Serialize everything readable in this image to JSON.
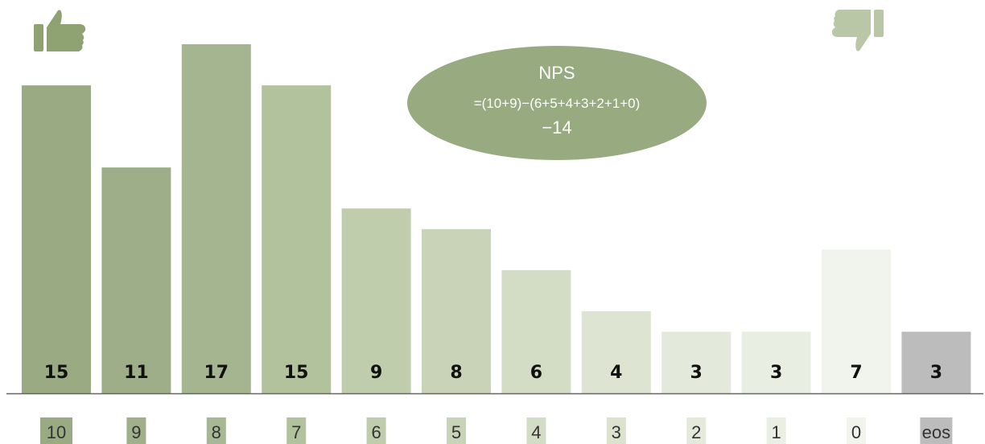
{
  "chart_data": {
    "type": "bar",
    "categories": [
      "10",
      "9",
      "8",
      "7",
      "6",
      "5",
      "4",
      "3",
      "2",
      "1",
      "0",
      "eos"
    ],
    "values": [
      15,
      11,
      17,
      15,
      9,
      8,
      6,
      4,
      3,
      3,
      7,
      3
    ],
    "value_labels": [
      "15",
      "11",
      "17",
      "15",
      "9",
      "8",
      "6",
      "4",
      "3",
      "3",
      "7",
      "3"
    ],
    "bar_colors": [
      "#9aab84",
      "#9eae88",
      "#a5b58f",
      "#b2c29d",
      "#c0cdad",
      "#c8d3b7",
      "#d3dcc4",
      "#dde4d1",
      "#e4eadb",
      "#e9eee2",
      "#f1f4ec",
      "#bcbcbc"
    ],
    "label_bg_colors": [
      "#9aab84",
      "#a1b08b",
      "#a8b794",
      "#b2c29d",
      "#bfcdad",
      "#c8d3b7",
      "#d3dcc4",
      "#dbe3ce",
      "#e4eadb",
      "#eaefe3",
      "#f1f4ec",
      "#bcbcbc"
    ],
    "ylim": [
      0,
      17
    ],
    "xlabel": "",
    "ylabel": "",
    "grid": false,
    "legend": "none"
  },
  "annotation": {
    "title": "NPS",
    "formula": "=(10+9)−(6+5+4+3+2+1+0)",
    "value": "−14",
    "color": "#98aa7f"
  },
  "icons": {
    "promoter": "thumbs-up-icon",
    "detractor": "thumbs-down-icon",
    "promoter_color": "#8fa372",
    "detractor_color": "#b9c7a6"
  }
}
